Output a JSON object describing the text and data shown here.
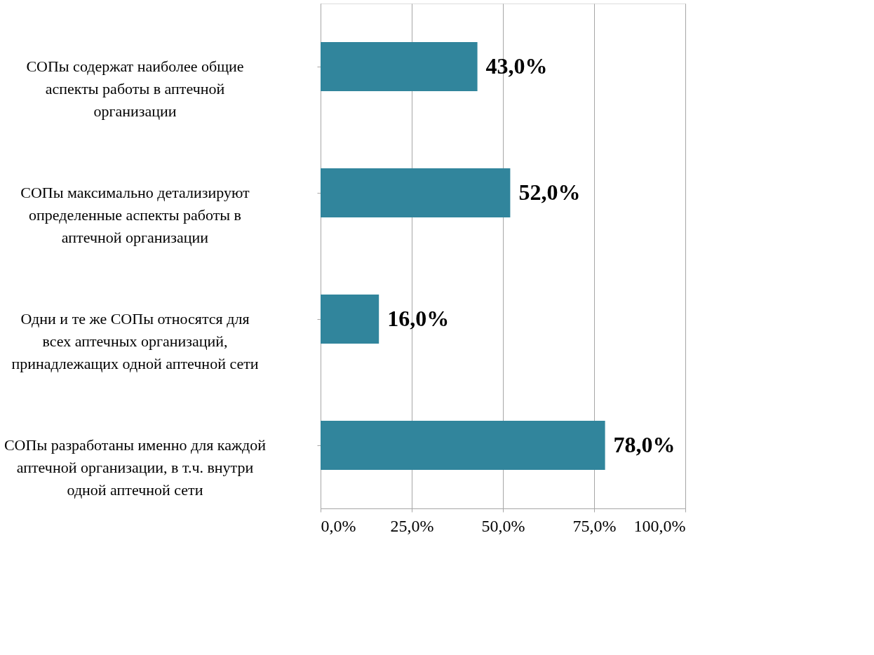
{
  "chart_data": {
    "type": "bar",
    "orientation": "horizontal",
    "categories": [
      "СОПы содержат наиболее общие аспекты работы в аптечной организации",
      "СОПы максимально детализируют определенные аспекты работы в аптечной организации",
      "Одни и те же СОПы относятся для всех аптечных организаций, принадлежащих одной аптечной сети",
      "СОПы разработаны именно для каждой аптечной организации, в т.ч. внутри одной аптечной сети"
    ],
    "values": [
      43,
      52,
      16,
      78
    ],
    "value_labels": [
      "43,0%",
      "52,0%",
      "16,0%",
      "78,0%"
    ],
    "color": "#31859c",
    "xlim": [
      0,
      100
    ],
    "xticks": [
      {
        "value": 0,
        "label": "0,0%"
      },
      {
        "value": 25,
        "label": "25,0%"
      },
      {
        "value": 50,
        "label": "50,0%"
      },
      {
        "value": 75,
        "label": "75,0%"
      },
      {
        "value": 100,
        "label": "100,0%"
      }
    ],
    "grid": "x"
  }
}
